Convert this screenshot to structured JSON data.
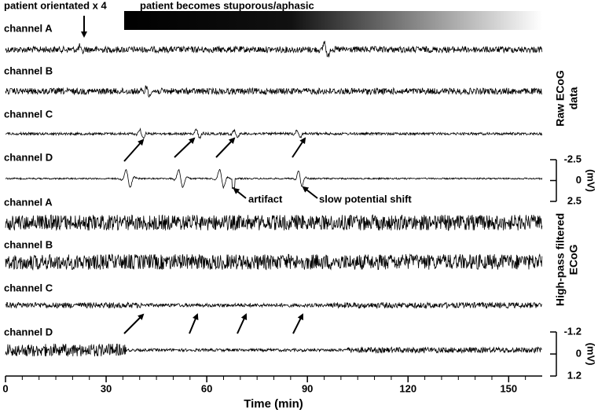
{
  "chart_data": {
    "type": "traces",
    "x_label": "Time (min)",
    "xlim": [
      0,
      160
    ],
    "xticks": [
      0,
      30,
      60,
      90,
      120,
      150
    ],
    "xminor_ticks": [
      5,
      10,
      15,
      20,
      25,
      35,
      40,
      45,
      50,
      55,
      65,
      70,
      75,
      80,
      85,
      95,
      100,
      105,
      110,
      115,
      125,
      130,
      135,
      140,
      145,
      155
    ],
    "annotations": {
      "oriented": "patient orientated x 4",
      "stuporous": "patient becomes stuporous/aphasic",
      "artifact": "artifact",
      "shift": "slow potential shift"
    },
    "panels": [
      {
        "label": "Raw ECoG data",
        "channels": [
          "channel A",
          "channel B",
          "channel C",
          "channel D"
        ],
        "scale_ticks": [
          -2.5,
          0,
          2.5
        ],
        "scale_unit": "(mV)"
      },
      {
        "label": "High-pass filtered ECoG",
        "channels": [
          "channel A",
          "channel B",
          "channel C",
          "channel D"
        ],
        "scale_ticks": [
          -1.2,
          0,
          1.2
        ],
        "scale_unit": "(mV)"
      }
    ]
  }
}
